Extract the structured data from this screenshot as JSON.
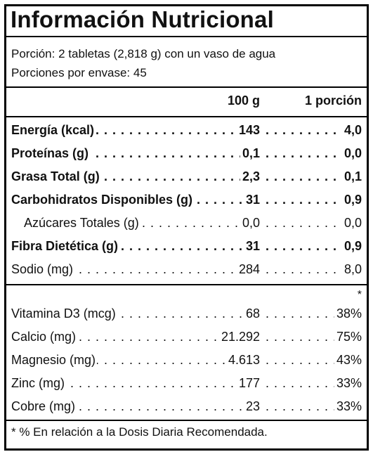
{
  "title": "Información Nutricional",
  "serving": {
    "size": "Porción: 2 tabletas (2,818 g) con un vaso de agua",
    "per_container": "Porciones por envase: 45"
  },
  "columns": {
    "per100": "100 g",
    "perServing": "1 porción"
  },
  "nutrients": [
    {
      "name": "Energía (kcal)",
      "per100": "143",
      "perServing": "4,0",
      "bold": true,
      "indent": false
    },
    {
      "name": "Proteínas (g)",
      "per100": "0,1",
      "perServing": "0,0",
      "bold": true,
      "indent": false
    },
    {
      "name": "Grasa Total (g)",
      "per100": "2,3",
      "perServing": "0,1",
      "bold": true,
      "indent": false
    },
    {
      "name": "Carbohidratos Disponibles (g)",
      "per100": "31",
      "perServing": "0,9",
      "bold": true,
      "indent": false
    },
    {
      "name": "Azúcares Totales (g)",
      "per100": "0,0",
      "perServing": "0,0",
      "bold": false,
      "indent": true
    },
    {
      "name": "Fibra Dietética (g)",
      "per100": "31",
      "perServing": "0,9",
      "bold": true,
      "indent": false
    },
    {
      "name": "Sodio (mg)",
      "per100": "284",
      "perServing": "8,0",
      "bold": false,
      "indent": false
    }
  ],
  "asterisk": "*",
  "micronutrients": [
    {
      "name": "Vitamina D3 (mcg)",
      "per100": "68",
      "perServing": "38%"
    },
    {
      "name": "Calcio (mg)",
      "per100": "21.292",
      "perServing": "75%"
    },
    {
      "name": "Magnesio (mg)",
      "per100": "4.613",
      "perServing": "43%"
    },
    {
      "name": "Zinc (mg)",
      "per100": "177",
      "perServing": "33%"
    },
    {
      "name": "Cobre (mg)",
      "per100": "23",
      "perServing": "33%"
    }
  ],
  "footnote": "* % En relación a la Dosis Diaria Recomendada."
}
